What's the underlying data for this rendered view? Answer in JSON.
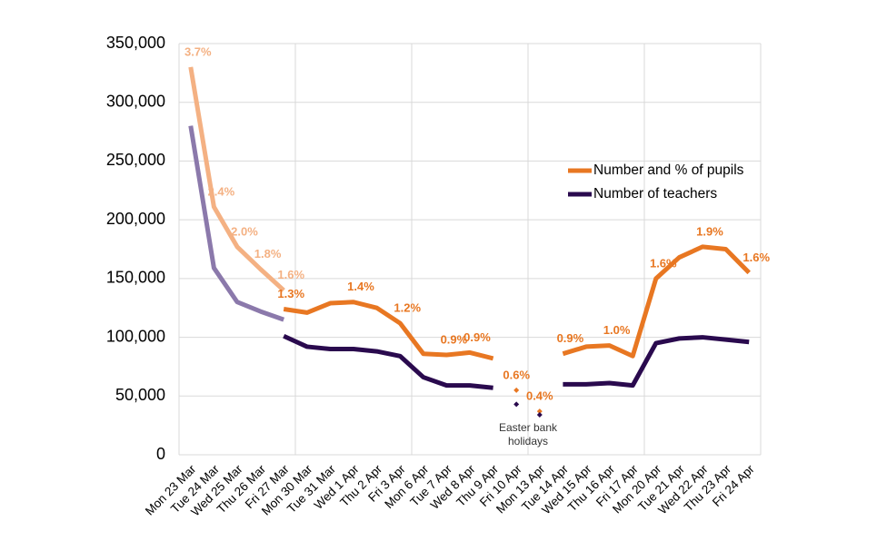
{
  "chart_data": {
    "type": "line",
    "categories": [
      "Mon 23 Mar",
      "Tue 24 Mar",
      "Wed 25 Mar",
      "Thu 26 Mar",
      "Fri 27 Mar",
      "Mon 30 Mar",
      "Tue 31 Mar",
      "Wed 1 Apr",
      "Thu 2 Apr",
      "Fri 3 Apr",
      "Mon 6 Apr",
      "Tue 7 Apr",
      "Wed 8 Apr",
      "Thu 9 Apr",
      "Fri 10 Apr",
      "Mon 13 Apr",
      "Tue 14 Apr",
      "Wed 15 Apr",
      "Thu 16 Apr",
      "Fri 17 Apr",
      "Mon 20 Apr",
      "Tue 21 Apr",
      "Wed 22 Apr",
      "Thu 23 Apr",
      "Fri 24 Apr"
    ],
    "series": [
      {
        "color": "#f4b183",
        "style": "line",
        "values": [
          330000,
          211000,
          177000,
          158000,
          140000,
          null,
          null,
          null,
          null,
          null,
          null,
          null,
          null,
          null,
          null,
          null,
          null,
          null,
          null,
          null,
          null,
          null,
          null,
          null,
          null
        ],
        "value_labels": [
          "3.7%",
          "2.4%",
          "2.0%",
          "1.8%",
          "1.6%",
          null,
          null,
          null,
          null,
          null,
          null,
          null,
          null,
          null,
          null,
          null,
          null,
          null,
          null,
          null,
          null,
          null,
          null,
          null,
          null
        ]
      },
      {
        "color": "#8b79ab",
        "style": "line",
        "values": [
          280000,
          159000,
          130000,
          122000,
          115000,
          null,
          null,
          null,
          null,
          null,
          null,
          null,
          null,
          null,
          null,
          null,
          null,
          null,
          null,
          null,
          null,
          null,
          null,
          null,
          null
        ]
      },
      {
        "name": "Number and % of pupils",
        "color": "#e87722",
        "style": "line",
        "values": [
          null,
          null,
          null,
          null,
          124000,
          121000,
          129000,
          130000,
          125000,
          112000,
          86000,
          85000,
          87000,
          82000,
          null,
          null,
          86000,
          92000,
          93000,
          84000,
          150000,
          168000,
          177000,
          175000,
          155000
        ],
        "value_labels": [
          null,
          null,
          null,
          null,
          "1.3%",
          null,
          null,
          "1.4%",
          null,
          "1.2%",
          null,
          "0.9%",
          "0.9%",
          null,
          null,
          null,
          "0.9%",
          null,
          "1.0%",
          null,
          "1.6%",
          null,
          "1.9%",
          null,
          "1.6%"
        ]
      },
      {
        "name": "Number of teachers",
        "color": "#2a0a4e",
        "style": "line",
        "values": [
          null,
          null,
          null,
          null,
          101000,
          92000,
          90000,
          90000,
          88000,
          84000,
          66000,
          59000,
          59000,
          57000,
          null,
          null,
          60000,
          60000,
          61000,
          59000,
          95000,
          99000,
          100000,
          98000,
          96000
        ]
      },
      {
        "color": "#e87722",
        "style": "markers",
        "values": [
          null,
          null,
          null,
          null,
          null,
          null,
          null,
          null,
          null,
          null,
          null,
          null,
          null,
          null,
          55000,
          37000,
          null,
          null,
          null,
          null,
          null,
          null,
          null,
          null,
          null
        ],
        "value_labels": [
          null,
          null,
          null,
          null,
          null,
          null,
          null,
          null,
          null,
          null,
          null,
          null,
          null,
          null,
          "0.6%",
          "0.4%",
          null,
          null,
          null,
          null,
          null,
          null,
          null,
          null,
          null
        ]
      },
      {
        "color": "#2a0a4e",
        "style": "markers",
        "values": [
          null,
          null,
          null,
          null,
          null,
          null,
          null,
          null,
          null,
          null,
          null,
          null,
          null,
          null,
          43000,
          34000,
          null,
          null,
          null,
          null,
          null,
          null,
          null,
          null,
          null
        ]
      }
    ],
    "annotation": [
      "Easter bank",
      "holidays"
    ],
    "ylim": [
      0,
      350000
    ],
    "yticks": [
      0,
      {
        "value": 50000,
        "label": "50,000"
      },
      {
        "value": 100000,
        "label": "100,000"
      },
      {
        "value": 150000,
        "label": "150,000"
      },
      {
        "value": 200000,
        "label": "200,000"
      },
      {
        "value": 250000,
        "label": "250,000"
      },
      {
        "value": 300000,
        "label": "300,000"
      },
      {
        "value": 350000,
        "label": "350,000"
      }
    ],
    "grid": true,
    "legend": "right"
  }
}
